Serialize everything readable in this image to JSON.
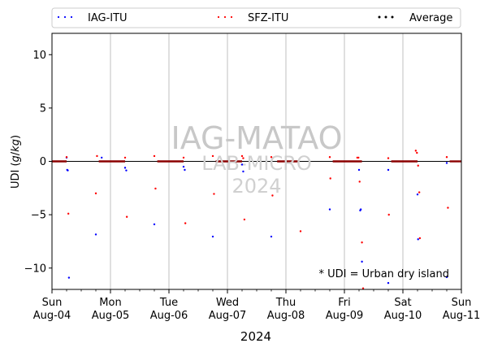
{
  "chart_data": {
    "type": "scatter",
    "ylabel": "UDI (g/kg)",
    "xlabel": "2024",
    "ylim": [
      -12,
      12
    ],
    "yticks": [
      -10,
      -5,
      0,
      5,
      10
    ],
    "xlim": [
      0,
      7
    ],
    "xtick_days": [
      {
        "day": "Sun",
        "date": "Aug-04"
      },
      {
        "day": "Mon",
        "date": "Aug-05"
      },
      {
        "day": "Tue",
        "date": "Aug-06"
      },
      {
        "day": "Wed",
        "date": "Aug-07"
      },
      {
        "day": "Thu",
        "date": "Aug-08"
      },
      {
        "day": "Fri",
        "date": "Aug-09"
      },
      {
        "day": "Sat",
        "date": "Aug-10"
      },
      {
        "day": "Sun",
        "date": "Aug-11"
      }
    ],
    "grid": "vertical major",
    "legend_position": "top",
    "annotation": "* UDI = Urban dry island",
    "watermark": {
      "main": "IAG-MATAO",
      "line2": "LAB-MICRO",
      "line3": "2024"
    },
    "series": [
      {
        "name": "IAG-ITU",
        "color": "#0000ff",
        "points": [
          [
            0.25,
            0.35
          ],
          [
            0.26,
            -0.8
          ],
          [
            0.27,
            -0.85
          ],
          [
            0.29,
            -10.9
          ],
          [
            0.75,
            -6.85
          ],
          [
            0.85,
            0.35
          ],
          [
            1.25,
            -0.6
          ],
          [
            1.27,
            -0.85
          ],
          [
            1.75,
            -5.9
          ],
          [
            2.25,
            -0.5
          ],
          [
            2.27,
            -0.8
          ],
          [
            2.75,
            -7.05
          ],
          [
            3.25,
            -0.3
          ],
          [
            3.27,
            -0.95
          ],
          [
            3.75,
            -7.05
          ],
          [
            4.75,
            -4.5
          ],
          [
            5.25,
            -0.8
          ],
          [
            5.27,
            -4.6
          ],
          [
            5.28,
            -4.5
          ],
          [
            5.3,
            -9.4
          ],
          [
            5.75,
            -0.8
          ],
          [
            5.75,
            -11.4
          ],
          [
            6.25,
            -3.1
          ],
          [
            6.26,
            -7.3
          ],
          [
            6.75,
            -0.15
          ],
          [
            6.75,
            -10.85
          ]
        ]
      },
      {
        "name": "SFZ-ITU",
        "color": "#ff0000",
        "points": [
          [
            0.25,
            0.4
          ],
          [
            0.28,
            -4.9
          ],
          [
            0.75,
            -3.0
          ],
          [
            0.77,
            0.5
          ],
          [
            1.25,
            0.35
          ],
          [
            1.28,
            -5.2
          ],
          [
            1.75,
            0.5
          ],
          [
            1.77,
            -2.55
          ],
          [
            2.25,
            0.35
          ],
          [
            2.28,
            -5.8
          ],
          [
            2.75,
            0.5
          ],
          [
            2.77,
            -3.05
          ],
          [
            3.25,
            0.5
          ],
          [
            3.27,
            0.3
          ],
          [
            3.29,
            -5.45
          ],
          [
            3.75,
            0.4
          ],
          [
            3.77,
            -3.2
          ],
          [
            4.25,
            -6.55
          ],
          [
            4.75,
            0.4
          ],
          [
            4.76,
            -1.6
          ],
          [
            5.22,
            0.35
          ],
          [
            5.24,
            0.35
          ],
          [
            5.26,
            -1.9
          ],
          [
            5.3,
            -7.6
          ],
          [
            5.32,
            -11.9
          ],
          [
            5.75,
            0.3
          ],
          [
            5.76,
            -5.0
          ],
          [
            6.22,
            1.0
          ],
          [
            6.24,
            0.8
          ],
          [
            6.26,
            -0.4
          ],
          [
            6.28,
            -2.9
          ],
          [
            6.29,
            -7.2
          ],
          [
            6.75,
            0.4
          ],
          [
            6.77,
            -4.35
          ]
        ]
      },
      {
        "name": "Average",
        "color": "#000000",
        "points": [
          [
            0,
            0
          ],
          [
            7,
            0
          ]
        ]
      }
    ],
    "baseline_segments": [
      [
        0.0,
        0.25
      ],
      [
        0.8,
        1.25
      ],
      [
        1.8,
        2.25
      ],
      [
        2.8,
        3.25
      ],
      [
        3.85,
        4.2
      ],
      [
        4.8,
        5.3
      ],
      [
        5.8,
        6.25
      ],
      [
        6.8,
        7.0
      ]
    ],
    "baseline_color": "#8b0000"
  }
}
